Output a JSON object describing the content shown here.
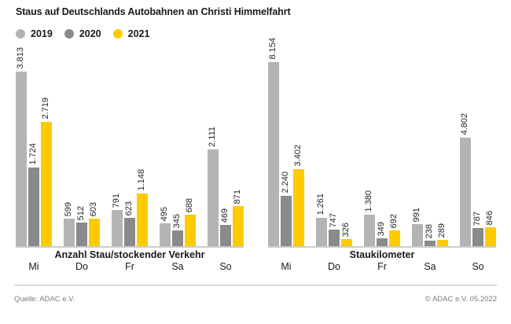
{
  "title": "Staus auf Deutschlands Autobahnen an Christi Himmelfahrt",
  "legend": [
    {
      "label": "2019",
      "color": "#b4b4b4"
    },
    {
      "label": "2020",
      "color": "#8a8a8a"
    },
    {
      "label": "2021",
      "color": "#fecb00"
    }
  ],
  "footer": {
    "source": "Quelle: ADAC e.V.",
    "copyright": "© ADAC e.V. 05.2022"
  },
  "chart_data": [
    {
      "type": "bar",
      "title": "Anzahl Stau/stockender Verkehr",
      "categories": [
        "Mi",
        "Do",
        "Fr",
        "Sa",
        "So"
      ],
      "series": [
        {
          "name": "2019",
          "color": "#b4b4b4",
          "values": [
            3813,
            599,
            791,
            495,
            2111
          ],
          "labels": [
            "3.813",
            "599",
            "791",
            "495",
            "2.111"
          ]
        },
        {
          "name": "2020",
          "color": "#8a8a8a",
          "values": [
            1724,
            512,
            623,
            345,
            469
          ],
          "labels": [
            "1.724",
            "512",
            "623",
            "345",
            "469"
          ]
        },
        {
          "name": "2021",
          "color": "#fecb00",
          "values": [
            2719,
            603,
            1148,
            688,
            871
          ],
          "labels": [
            "2.719",
            "603",
            "1.148",
            "688",
            "871"
          ]
        }
      ],
      "ylim": [
        0,
        3813
      ],
      "grid": false,
      "legend_position": "top-left",
      "value_labels": "rotated-90-above-bars"
    },
    {
      "type": "bar",
      "title": "Staukilometer",
      "categories": [
        "Mi",
        "Do",
        "Fr",
        "Sa",
        "So"
      ],
      "series": [
        {
          "name": "2019",
          "color": "#b4b4b4",
          "values": [
            8154,
            1261,
            1380,
            991,
            4802
          ],
          "labels": [
            "8.154",
            "1.261",
            "1.380",
            "991",
            "4.802"
          ]
        },
        {
          "name": "2020",
          "color": "#8a8a8a",
          "values": [
            2240,
            747,
            349,
            238,
            787
          ],
          "labels": [
            "2.240",
            "747",
            "349",
            "238",
            "787"
          ]
        },
        {
          "name": "2021",
          "color": "#fecb00",
          "values": [
            3402,
            326,
            692,
            289,
            846
          ],
          "labels": [
            "3.402",
            "326",
            "692",
            "289",
            "846"
          ]
        }
      ],
      "ylim": [
        0,
        8154
      ],
      "grid": false,
      "legend_position": "shared-top-left",
      "value_labels": "rotated-90-above-bars"
    }
  ]
}
